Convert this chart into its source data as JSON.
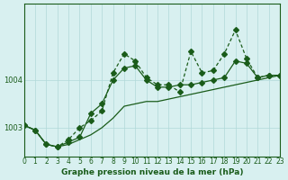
{
  "bg_color": "#d8f0f0",
  "line_color": "#1a5c1a",
  "grid_color": "#b0d8d8",
  "xlabel": "Graphe pression niveau de la mer (hPa)",
  "xlabel_color": "#1a5c1a",
  "ylabel_ticks": [
    1003,
    1004
  ],
  "xlim": [
    0,
    23
  ],
  "ylim": [
    1002.4,
    1005.6
  ],
  "xticks": [
    0,
    1,
    2,
    3,
    4,
    5,
    6,
    7,
    8,
    9,
    10,
    11,
    12,
    13,
    14,
    15,
    16,
    17,
    18,
    19,
    20,
    21,
    22,
    23
  ],
  "series1_x": [
    0,
    1,
    2,
    3,
    4,
    5,
    6,
    7,
    8,
    9,
    10,
    11,
    12,
    13,
    14,
    15,
    16,
    17,
    18,
    19,
    20,
    21,
    22,
    23
  ],
  "series1_y": [
    1003.05,
    1002.95,
    1002.65,
    1002.6,
    1002.65,
    1002.75,
    1002.85,
    1003.0,
    1003.2,
    1003.45,
    1003.5,
    1003.55,
    1003.55,
    1003.6,
    1003.65,
    1003.7,
    1003.75,
    1003.8,
    1003.85,
    1003.9,
    1003.95,
    1004.0,
    1004.05,
    1004.1
  ],
  "series2_x": [
    0,
    1,
    2,
    3,
    4,
    5,
    6,
    7,
    8,
    9,
    10,
    11,
    12,
    13,
    14,
    15,
    16,
    17,
    18,
    19,
    20,
    21,
    22,
    23
  ],
  "series2_y": [
    1003.05,
    1002.95,
    1002.65,
    1002.6,
    1002.7,
    1002.8,
    1003.3,
    1003.5,
    1004.0,
    1004.25,
    1004.3,
    1004.0,
    1003.85,
    1003.85,
    1003.9,
    1003.9,
    1003.95,
    1004.0,
    1004.05,
    1004.4,
    1004.35,
    1004.05,
    1004.1,
    1004.1
  ],
  "series3_x": [
    0,
    1,
    2,
    3,
    4,
    5,
    6,
    7,
    8,
    9,
    10,
    11,
    12,
    13,
    14,
    15,
    16,
    17,
    18,
    19,
    20,
    21,
    22,
    23
  ],
  "series3_y": [
    1003.05,
    1002.95,
    1002.65,
    1002.6,
    1002.75,
    1003.0,
    1003.15,
    1003.35,
    1004.15,
    1004.55,
    1004.4,
    1004.05,
    1003.9,
    1003.9,
    1003.75,
    1004.6,
    1004.15,
    1004.2,
    1004.55,
    1005.05,
    1004.45,
    1004.05,
    1004.1,
    1004.1
  ]
}
